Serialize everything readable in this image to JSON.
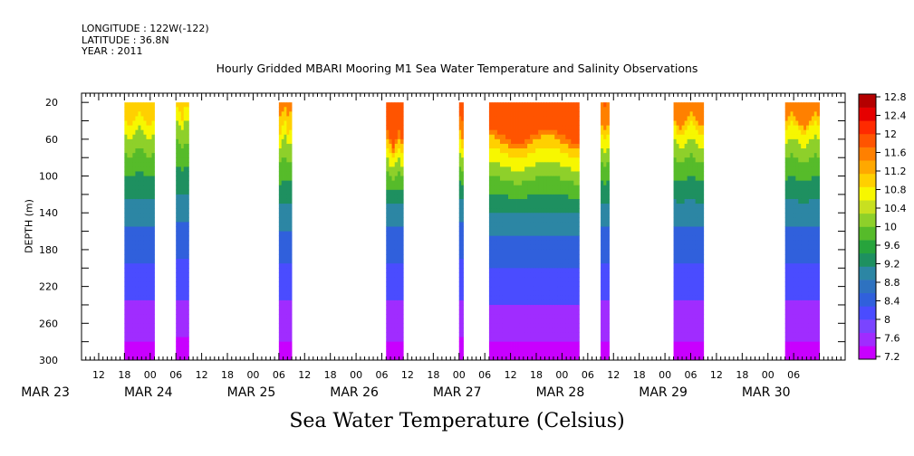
{
  "header": {
    "longitude": "LONGITUDE : 122W(-122)",
    "latitude": "LATITUDE : 36.8N",
    "year": "YEAR : 2011",
    "title": "Hourly Gridded MBARI Mooring M1 Sea Water Temperature and Salinity Observations"
  },
  "footer_label": "Sea Water Temperature (Celsius)",
  "chart_data": {
    "type": "heatmap",
    "title": "Hourly Gridded MBARI Mooring M1 Sea Water Temperature and Salinity Observations",
    "xlabel": "",
    "ylabel": "DEPTH (m)",
    "colorbar_label": "Sea Water Temperature (Celsius)",
    "x_range_hours": [
      8,
      186
    ],
    "ylim": [
      300,
      10
    ],
    "y_ticks": [
      20,
      60,
      100,
      140,
      180,
      220,
      260,
      300
    ],
    "x_hour_ticks": [
      "12",
      "18",
      "00",
      "06",
      "12",
      "18",
      "00",
      "06",
      "12",
      "18",
      "00",
      "06",
      "12",
      "18",
      "00",
      "06",
      "12",
      "18",
      "00",
      "06",
      "12",
      "18",
      "00",
      "06",
      "12",
      "18",
      "00",
      "06"
    ],
    "x_hour_tick_positions": [
      12,
      18,
      24,
      30,
      36,
      42,
      48,
      54,
      60,
      66,
      72,
      78,
      84,
      90,
      96,
      102,
      108,
      114,
      120,
      126,
      132,
      138,
      144,
      150,
      156,
      162,
      168,
      174
    ],
    "day_labels": [
      {
        "label": "MAR 23",
        "hour": 0
      },
      {
        "label": "MAR 24",
        "hour": 24
      },
      {
        "label": "MAR 25",
        "hour": 48
      },
      {
        "label": "MAR 26",
        "hour": 72
      },
      {
        "label": "MAR 27",
        "hour": 96
      },
      {
        "label": "MAR 28",
        "hour": 120
      },
      {
        "label": "MAR 29",
        "hour": 144
      },
      {
        "label": "MAR 30",
        "hour": 168
      }
    ],
    "colorbar_levels": [
      "7.2",
      "7.6",
      "8",
      "8.4",
      "8.8",
      "9.2",
      "9.6",
      "10",
      "10.4",
      "10.8",
      "11.2",
      "11.6",
      "12",
      "12.4",
      "12.8"
    ],
    "colorbar_colors": [
      "#c800ff",
      "#a02cff",
      "#7a44ff",
      "#4a4cff",
      "#3060dc",
      "#2e72c0",
      "#2c86a4",
      "#1e9060",
      "#27a43c",
      "#56bb2a",
      "#8ed02a",
      "#c8e020",
      "#f7f700",
      "#ffd000",
      "#ffa800",
      "#ff8000",
      "#ff5400",
      "#ff2a00",
      "#e60000",
      "#b40000"
    ],
    "data_blocks": [
      {
        "start_hour": 18,
        "end_hour": 25,
        "mixed_depth": 35,
        "thermo_bottom": 140,
        "surface_temp": 11.4
      },
      {
        "start_hour": 30,
        "end_hour": 33,
        "mixed_depth": 30,
        "thermo_bottom": 135,
        "surface_temp": 11.3
      },
      {
        "start_hour": 54,
        "end_hour": 57,
        "mixed_depth": 40,
        "thermo_bottom": 145,
        "surface_temp": 11.5
      },
      {
        "start_hour": 79,
        "end_hour": 83,
        "mixed_depth": 60,
        "thermo_bottom": 140,
        "surface_temp": 12.0
      },
      {
        "start_hour": 96,
        "end_hour": 97,
        "mixed_depth": 50,
        "thermo_bottom": 135,
        "surface_temp": 11.9
      },
      {
        "start_hour": 103,
        "end_hour": 124,
        "mixed_depth": 55,
        "thermo_bottom": 150,
        "surface_temp": 12.1
      },
      {
        "start_hour": 129,
        "end_hour": 131,
        "mixed_depth": 45,
        "thermo_bottom": 140,
        "surface_temp": 11.8
      },
      {
        "start_hour": 146,
        "end_hour": 153,
        "mixed_depth": 40,
        "thermo_bottom": 140,
        "surface_temp": 11.6
      },
      {
        "start_hour": 172,
        "end_hour": 180,
        "mixed_depth": 40,
        "thermo_bottom": 140,
        "surface_temp": 11.6
      }
    ],
    "bottom_temp": 7.4
  }
}
